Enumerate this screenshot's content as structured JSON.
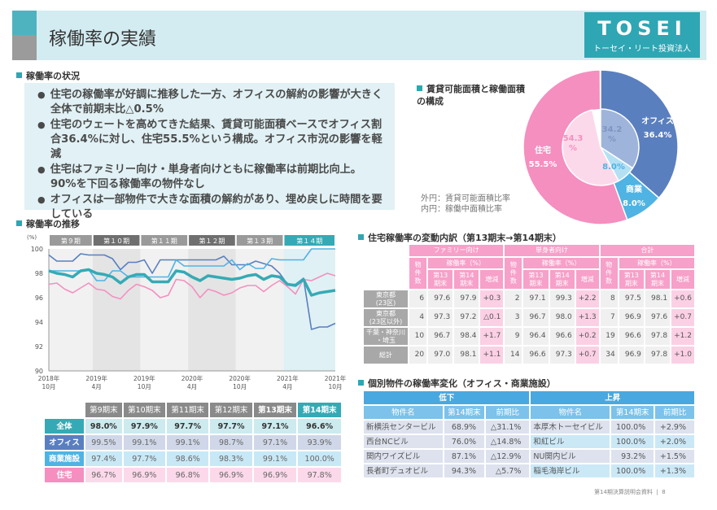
{
  "header": {
    "title": "稼働率の実績",
    "logo_main": "TOSEI",
    "logo_sub": "トーセイ・リート投資法人"
  },
  "status": {
    "heading": "稼働率の状況",
    "bullets": [
      "住宅の稼働率が好調に推移した一方、オフィスの解約の影響が大きく全体で前期末比△0.5%",
      "住宅のウェートを高めてきた結果、賃貸可能面積ベースでオフィス割合36.4%に対し、住宅55.5%という構成。オフィス市況の影響を軽減",
      "住宅はファミリー向け・単身者向けともに稼働率は前期比向上。90%を下回る稼働率の物件なし",
      "オフィスは一部物件で大きな面積の解約があり、埋め戻しに時間を要している"
    ]
  },
  "composition": {
    "heading": "賃貸可能面積と稼働面積の構成",
    "note_outer": "外円：賃貸可能面積比率",
    "note_inner": "内円：稼働中面積比率"
  },
  "trend": {
    "heading": "稼働率の推移"
  },
  "residential": {
    "heading": "住宅稼働率の変動内訳（第13期末→第14期末）"
  },
  "individual": {
    "heading": "個別物件の稼働率変化（オフィス・商業施設）"
  },
  "footer": {
    "text": "第14期決算説明会資料",
    "page": "8"
  },
  "colors": {
    "total": "#35aab5",
    "office": "#5a7fbf",
    "retail": "#4fb3e4",
    "residential": "#f48fc0"
  },
  "chart_data": [
    {
      "type": "line",
      "ylabel": "(%)",
      "ylim": [
        90,
        100
      ],
      "yticks": [
        90,
        92,
        94,
        96,
        98,
        100
      ],
      "xticks": [
        "2018年\n10月",
        "2019年\n4月",
        "2019年\n10月",
        "2020年\n4月",
        "2020年\n10月",
        "2021年\n4月",
        "2021年\n10月"
      ],
      "periods": [
        "第９期",
        "第１０期",
        "第１１期",
        "第１２期",
        "第１３期",
        "第１４期"
      ],
      "grid": false,
      "series": [
        {
          "key": "office",
          "values": [
            99.5,
            99.0,
            99.0,
            99.0,
            99.6,
            99.5,
            99.5,
            99.5,
            99.2,
            98.3,
            98.9,
            98.9,
            99.1,
            98.0,
            99.1,
            99.1,
            99.1,
            99.1,
            99.1,
            99.1,
            99.1,
            99.1,
            99.4,
            98.7,
            98.7,
            98.7,
            99.0,
            98.8,
            98.6,
            98.0,
            97.1,
            97.1,
            97.6,
            93.4,
            93.6,
            93.6,
            93.9
          ]
        },
        {
          "key": "retail",
          "values": [
            98.2,
            98.2,
            98.2,
            98.2,
            98.2,
            98.3,
            97.4,
            97.4,
            98.2,
            98.2,
            97.7,
            97.7,
            97.7,
            97.7,
            97.7,
            97.7,
            99.1,
            98.6,
            98.6,
            98.6,
            98.6,
            98.6,
            98.6,
            99.1,
            98.3,
            98.8,
            98.4,
            98.4,
            99.2,
            99.1,
            99.1,
            99.1,
            99.1,
            100,
            100,
            100,
            100
          ]
        },
        {
          "key": "residential",
          "values": [
            97.1,
            97.2,
            96.7,
            96.4,
            96.8,
            97.2,
            96.7,
            96.6,
            96.1,
            95.9,
            96.6,
            97.1,
            96.9,
            96.6,
            96.0,
            96.2,
            97.5,
            97.4,
            96.9,
            96.0,
            96.7,
            96.5,
            96.2,
            96.4,
            96.8,
            97.0,
            97.0,
            96.5,
            97.0,
            97.4,
            96.9,
            96.3,
            97.5,
            97.4,
            97.7,
            98.0,
            97.8
          ]
        },
        {
          "key": "total",
          "values": [
            98.2,
            98.0,
            97.9,
            97.7,
            98.2,
            98.3,
            98.0,
            97.9,
            97.7,
            97.2,
            97.7,
            97.9,
            97.9,
            97.3,
            97.3,
            97.3,
            98.2,
            98.1,
            97.7,
            97.4,
            97.8,
            97.7,
            97.6,
            97.5,
            97.6,
            97.8,
            97.9,
            97.5,
            97.8,
            97.7,
            97.1,
            97.0,
            97.5,
            96.2,
            96.4,
            96.5,
            96.6
          ]
        }
      ]
    },
    {
      "type": "pie",
      "outer": [
        {
          "label": "オフィス",
          "value": 36.4,
          "text": "36.4%"
        },
        {
          "label": "商業",
          "value": 8.0,
          "text": "8.0%"
        },
        {
          "label": "住宅",
          "value": 55.5,
          "text": "55.5%"
        }
      ],
      "inner": [
        {
          "label": "オフィス",
          "value": 34.2,
          "text": "34.2\n%"
        },
        {
          "label": "商業",
          "value": 8.0,
          "text": "8.0%"
        },
        {
          "label": "住宅",
          "value": 54.3,
          "text": "54.3\n%"
        }
      ]
    },
    {
      "type": "table",
      "columns": [
        "",
        "第9期末",
        "第10期末",
        "第11期末",
        "第12期末",
        "第13期末",
        "第14期末"
      ],
      "rows": [
        [
          "全体",
          "98.0%",
          "97.9%",
          "97.7%",
          "97.7%",
          "97.1%",
          "96.6%"
        ],
        [
          "オフィス",
          "99.5%",
          "99.1%",
          "99.1%",
          "98.7%",
          "97.1%",
          "93.9%"
        ],
        [
          "商業施設",
          "97.4%",
          "97.7%",
          "98.6%",
          "98.3%",
          "99.1%",
          "100.0%"
        ],
        [
          "住宅",
          "96.7%",
          "96.9%",
          "96.8%",
          "96.9%",
          "96.9%",
          "97.8%"
        ]
      ]
    },
    {
      "type": "table",
      "groups": [
        "ファミリー向け",
        "単身者向け",
        "合計"
      ],
      "sub": "稼働率（%）",
      "cols": [
        "物件数",
        "第13期末",
        "第14期末",
        "増減"
      ],
      "rows": [
        {
          "label": "東京都\n(23区)",
          "cells": [
            "6",
            "97.6",
            "97.9",
            "+0.3",
            "2",
            "97.1",
            "99.3",
            "+2.2",
            "8",
            "97.5",
            "98.1",
            "+0.6"
          ]
        },
        {
          "label": "東京都\n(23区以外)",
          "cells": [
            "4",
            "97.3",
            "97.2",
            "△0.1",
            "3",
            "96.7",
            "98.0",
            "+1.3",
            "7",
            "96.9",
            "97.6",
            "+0.7"
          ]
        },
        {
          "label": "千葉・神奈川\n・埼玉",
          "cells": [
            "10",
            "96.7",
            "98.4",
            "+1.7",
            "9",
            "96.4",
            "96.6",
            "+0.2",
            "19",
            "96.6",
            "97.8",
            "+1.2"
          ]
        },
        {
          "label": "総計",
          "cells": [
            "20",
            "97.0",
            "98.1",
            "+1.1",
            "14",
            "96.6",
            "97.3",
            "+0.7",
            "34",
            "96.9",
            "97.8",
            "+1.0"
          ]
        }
      ]
    },
    {
      "type": "table",
      "groups": [
        "低下",
        "上昇"
      ],
      "cols": [
        "物件名",
        "第14期末",
        "前期比",
        "物件名",
        "第14期末",
        "前期比"
      ],
      "rows": [
        [
          "新横浜センタービル",
          "68.9%",
          "△31.1%",
          "本厚木トーセイビル",
          "100.0%",
          "+2.9%"
        ],
        [
          "西台NCビル",
          "76.0%",
          "△14.8%",
          "和紅ビル",
          "100.0%",
          "+2.0%"
        ],
        [
          "関内ワイズビル",
          "87.1%",
          "△12.9%",
          "NU関内ビル",
          "93.2%",
          "+1.5%"
        ],
        [
          "長者町デュオビル",
          "94.3%",
          "△5.7%",
          "稲毛海岸ビル",
          "100.0%",
          "+1.3%"
        ]
      ]
    }
  ]
}
